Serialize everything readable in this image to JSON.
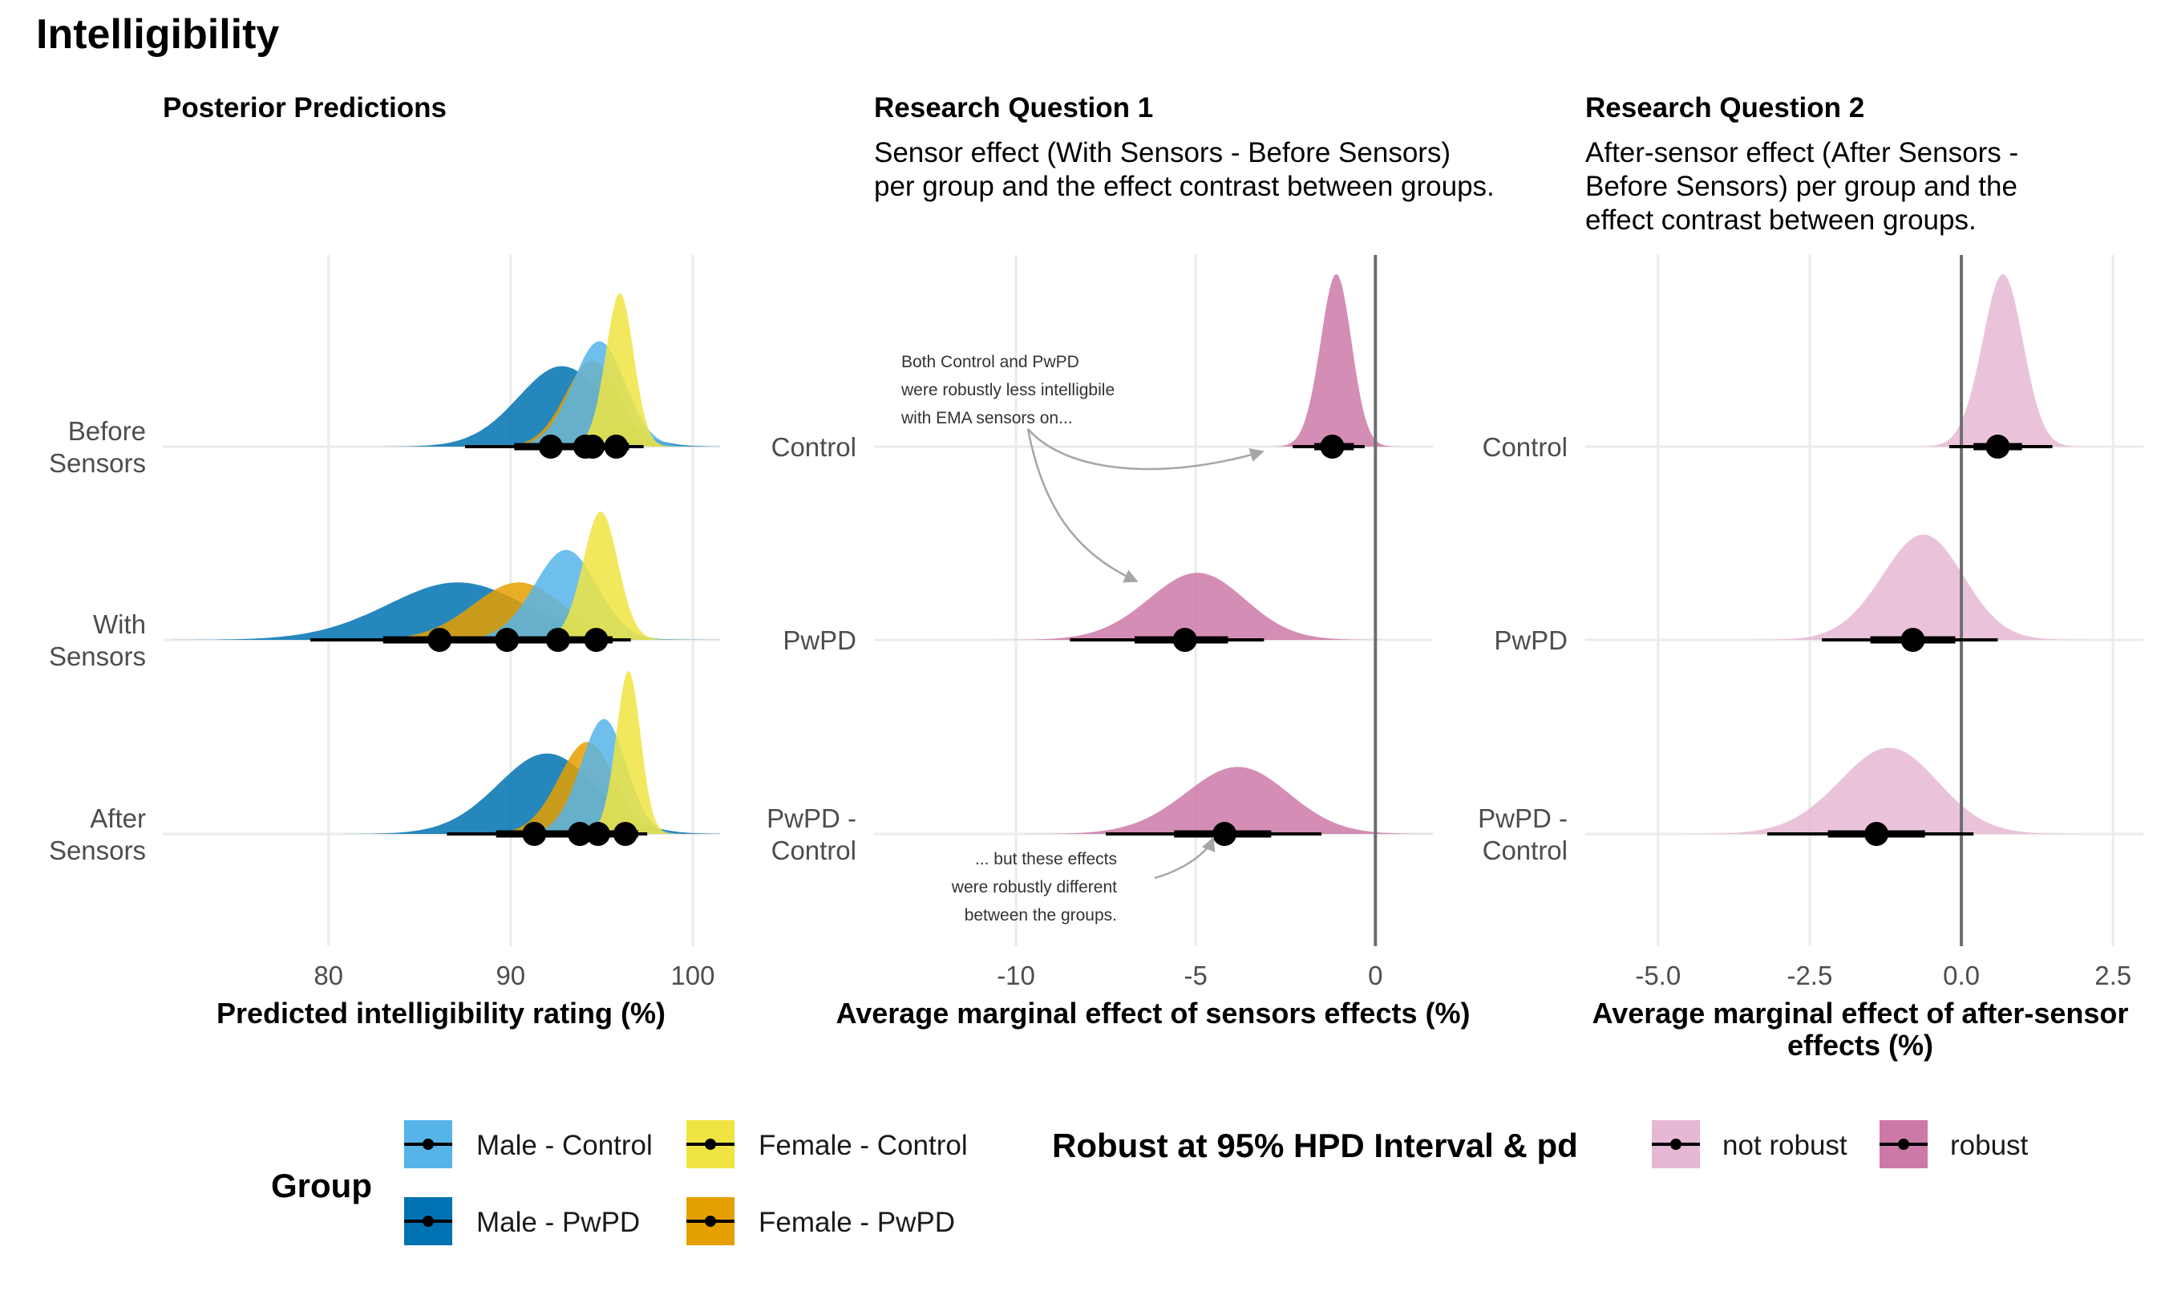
{
  "title": "Intelligibility",
  "panels": [
    {
      "title": "Posterior Predictions",
      "subtitle": [],
      "xlabel": [
        "Predicted intelligibility rating (%)"
      ],
      "categories": [
        "Before Sensors",
        "With Sensors",
        "After Sensors"
      ],
      "xlim": [
        70.9,
        101.5
      ],
      "xticks": [
        80,
        90,
        100
      ]
    },
    {
      "title": "Research Question 1",
      "subtitle": [
        "Sensor effect (With Sensors - Before Sensors)",
        "per group and the effect contrast between groups."
      ],
      "xlabel": [
        "Average marginal effect of sensors effects (%)"
      ],
      "categories": [
        "Control",
        "PwPD",
        "PwPD - Control"
      ],
      "xlim": [
        -13.95,
        1.6
      ],
      "xticks": [
        -10,
        -5,
        0
      ]
    },
    {
      "title": "Research Question 2",
      "subtitle": [
        "After-sensor effect (After Sensors -",
        "Before Sensors) per group and the",
        "effect contrast between groups."
      ],
      "xlabel": [
        "Average marginal effect of after-sensor",
        "effects (%)"
      ],
      "categories": [
        "Control",
        "PwPD",
        "PwPD - Control"
      ],
      "xlim": [
        -6.2,
        3.0
      ],
      "xticks": [
        -5.0,
        -2.5,
        0.0,
        2.5
      ],
      "xtick_labels": [
        "-5.0",
        "-2.5",
        "0.0",
        "2.5"
      ]
    }
  ],
  "annotations": [
    {
      "lines": [
        "Both Control and PwPD",
        "were robustly less intelligbile",
        "with EMA sensors on..."
      ]
    },
    {
      "lines": [
        "... but these effects",
        "were robustly different",
        "between the groups."
      ]
    }
  ],
  "legend_group": {
    "title": "Group",
    "items": [
      {
        "label": "Male - Control",
        "color": "#56b4e9"
      },
      {
        "label": "Female - Control",
        "color": "#f0e442"
      },
      {
        "label": "Male - PwPD",
        "color": "#0072b2"
      },
      {
        "label": "Female - PwPD",
        "color": "#e69f00"
      }
    ]
  },
  "legend_robust": {
    "title": "Robust at 95% HPD Interval & pd",
    "items": [
      {
        "label": "not robust",
        "color": "#e6b8d3"
      },
      {
        "label": "robust",
        "color": "#cc79a7"
      }
    ]
  },
  "chart_data": [
    {
      "type": "density-interval",
      "panel": "Posterior Predictions",
      "categories": [
        "Before Sensors",
        "With Sensors",
        "After Sensors"
      ],
      "series": [
        {
          "name": "Male - PwPD",
          "color": "#0072b2",
          "median": [
            92.2,
            86.1,
            91.3
          ],
          "interval66": [
            [
              90.2,
              94.0
            ],
            [
              83.0,
              89.0
            ],
            [
              89.2,
              93.2
            ]
          ],
          "interval95": [
            [
              87.5,
              96.0
            ],
            [
              79.0,
              92.5
            ],
            [
              86.5,
              95.0
            ]
          ],
          "density_sd": [
            2.5,
            4.0,
            2.8
          ],
          "peak_height": [
            0.42,
            0.3,
            0.42
          ]
        },
        {
          "name": "Female - PwPD",
          "color": "#e69f00",
          "median": [
            94.1,
            89.8,
            93.8
          ],
          "interval66": [
            [
              93.0,
              95.2
            ],
            [
              88.0,
              91.6
            ],
            [
              92.5,
              95.1
            ]
          ],
          "interval95": [
            [
              91.5,
              96.5
            ],
            [
              85.5,
              93.5
            ],
            [
              91.0,
              96.5
            ]
          ],
          "density_sd": [
            1.5,
            2.6,
            1.6
          ],
          "peak_height": [
            0.45,
            0.3,
            0.48
          ]
        },
        {
          "name": "Male - Control",
          "color": "#56b4e9",
          "median": [
            94.5,
            92.6,
            94.8
          ],
          "interval66": [
            [
              93.5,
              95.5
            ],
            [
              91.3,
              93.9
            ],
            [
              93.8,
              95.8
            ]
          ],
          "interval95": [
            [
              92.3,
              96.5
            ],
            [
              89.5,
              95.5
            ],
            [
              92.5,
              97.0
            ]
          ],
          "density_sd": [
            1.5,
            1.8,
            1.3
          ],
          "peak_height": [
            0.55,
            0.47,
            0.6
          ]
        },
        {
          "name": "Female - Control",
          "color": "#f0e442",
          "median": [
            95.8,
            94.7,
            96.3
          ],
          "interval66": [
            [
              95.0,
              96.5
            ],
            [
              93.9,
              95.6
            ],
            [
              95.6,
              97.0
            ]
          ],
          "interval95": [
            [
              93.8,
              97.3
            ],
            [
              92.2,
              96.6
            ],
            [
              94.5,
              97.5
            ]
          ],
          "density_sd": [
            0.8,
            1.0,
            0.7
          ],
          "peak_height": [
            0.8,
            0.67,
            0.85
          ]
        }
      ]
    },
    {
      "type": "density-interval",
      "panel": "Research Question 1",
      "categories": [
        "Control",
        "PwPD",
        "PwPD - Control"
      ],
      "reference_line": 0,
      "series": [
        {
          "name": "robust",
          "color": "#cc79a7",
          "median": [
            -1.2,
            -5.3,
            -4.2
          ],
          "interval66": [
            [
              -1.7,
              -0.6
            ],
            [
              -6.7,
              -4.1
            ],
            [
              -5.6,
              -2.9
            ]
          ],
          "interval95": [
            [
              -2.3,
              -0.3
            ],
            [
              -8.5,
              -3.1
            ],
            [
              -7.5,
              -1.5
            ]
          ],
          "density_sd": [
            0.45,
            1.4,
            1.5
          ],
          "peak_height": [
            0.9,
            0.35,
            0.35
          ]
        }
      ]
    },
    {
      "type": "density-interval",
      "panel": "Research Question 2",
      "categories": [
        "Control",
        "PwPD",
        "PwPD - Control"
      ],
      "reference_line": 0,
      "series": [
        {
          "name": "not robust",
          "color": "#e6b8d3",
          "median": [
            0.6,
            -0.8,
            -1.4
          ],
          "interval66": [
            [
              0.2,
              1.0
            ],
            [
              -1.5,
              -0.1
            ],
            [
              -2.2,
              -0.6
            ]
          ],
          "interval95": [
            [
              -0.2,
              1.5
            ],
            [
              -2.3,
              0.6
            ],
            [
              -3.2,
              0.2
            ]
          ],
          "density_sd": [
            0.35,
            0.7,
            0.85
          ],
          "peak_height": [
            0.9,
            0.55,
            0.45
          ]
        }
      ]
    }
  ]
}
